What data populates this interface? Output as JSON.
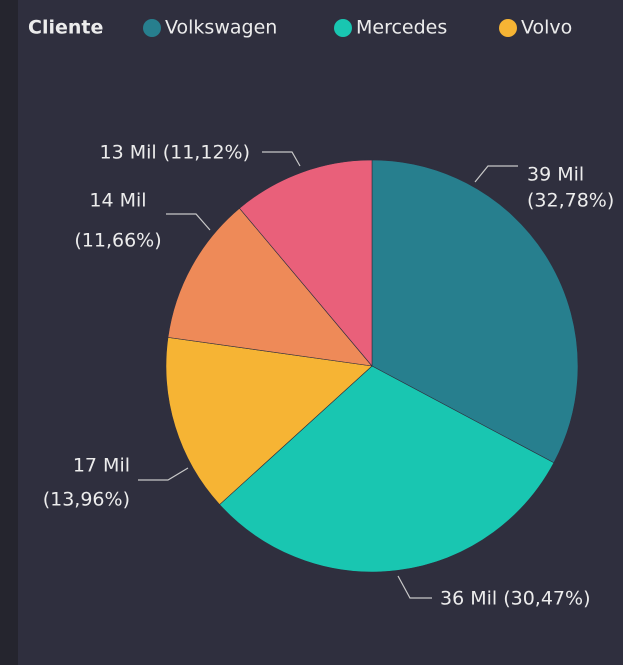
{
  "chart_data": {
    "type": "pie",
    "legend_title": "Cliente",
    "categories": [
      "Volkswagen",
      "Mercedes",
      "Volvo",
      null,
      null
    ],
    "values": [
      32.78,
      30.47,
      13.96,
      11.66,
      11.12
    ],
    "value_labels": [
      [
        "39 Mil",
        "(32,78%)"
      ],
      [
        "36 Mil (30,47%)"
      ],
      [
        "17 Mil",
        "(13,96%)"
      ],
      [
        "14 Mil",
        "(11,66%)"
      ],
      [
        "13 Mil (11,12%)"
      ]
    ],
    "colors": [
      "#277f8e",
      "#19c6b1",
      "#f6b434",
      "#ee8a58",
      "#e9607a"
    ],
    "legend": "top-left"
  }
}
